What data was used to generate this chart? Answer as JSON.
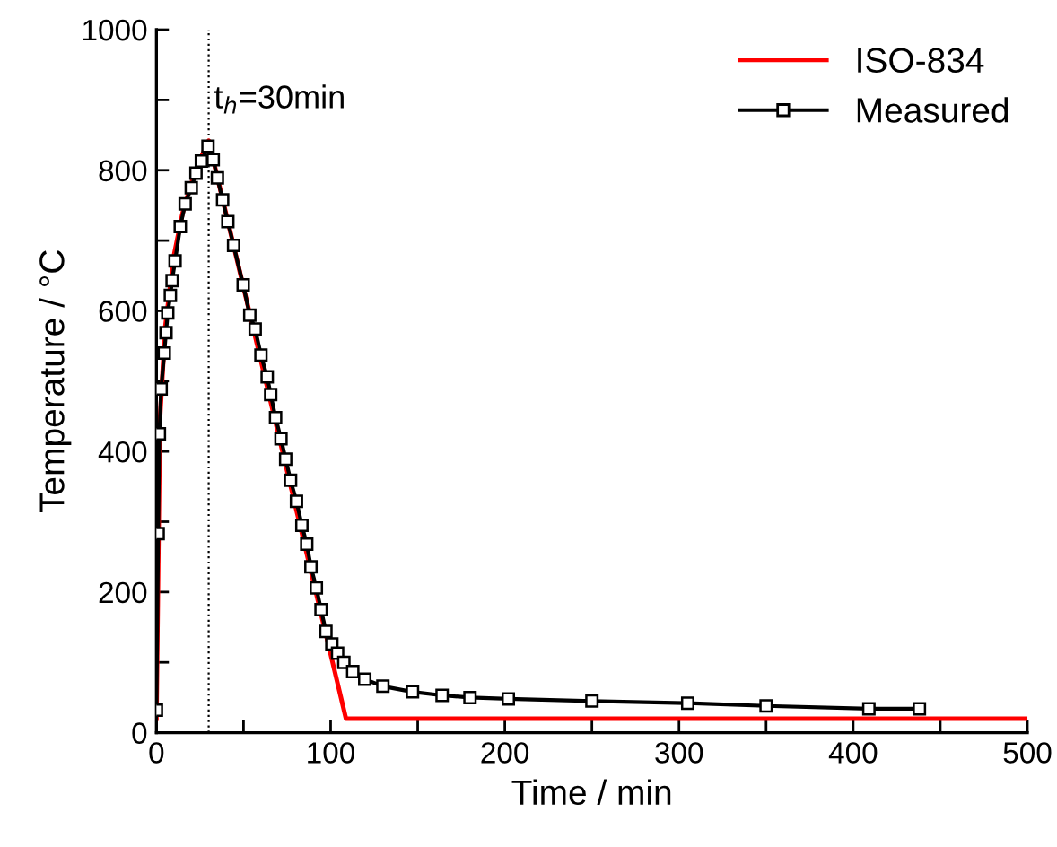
{
  "chart_data": {
    "type": "line",
    "xlabel": "Time / min",
    "ylabel": "Temperature / °C",
    "xlim": [
      0,
      500
    ],
    "ylim": [
      0,
      1000
    ],
    "xticks": [
      0,
      {
        "value": 50,
        "label": null
      },
      100,
      {
        "value": 150,
        "label": null
      },
      200,
      {
        "value": 250,
        "label": null
      },
      300,
      {
        "value": 350,
        "label": null
      },
      400,
      {
        "value": 450,
        "label": null
      },
      500
    ],
    "yticks": [
      0,
      {
        "value": 100,
        "label": null
      },
      200,
      {
        "value": 300,
        "label": null
      },
      400,
      {
        "value": 500,
        "label": null
      },
      600,
      {
        "value": 700,
        "label": null
      },
      800,
      {
        "value": 900,
        "label": null
      },
      1000
    ],
    "grid": false,
    "legend": "top right",
    "ref_lines": [
      {
        "axis": "x",
        "value": 30,
        "label": "t$_{h}$=30min",
        "color": "#000000",
        "line_style": "dotted"
      }
    ],
    "series": [
      {
        "name": "ISO-834",
        "color": "#ff0000",
        "marker": "none",
        "x": [
          0,
          2,
          5,
          10,
          15,
          20,
          25,
          30,
          108.8,
          500
        ],
        "values": [
          20,
          445,
          576,
          678,
          739,
          781,
          815,
          842,
          20,
          20
        ]
      },
      {
        "name": "Measured",
        "color": "#000000",
        "marker": "square",
        "x": [
          0,
          1,
          1.7,
          2.7,
          4.5,
          5.5,
          6.5,
          8,
          9,
          10.7,
          13.7,
          16.5,
          20,
          22.7,
          25.8,
          29.6,
          32.6,
          35,
          38,
          41,
          44.3,
          49.8,
          53.6,
          56.7,
          60,
          63.6,
          65.6,
          68.4,
          71.5,
          74.2,
          77,
          80.4,
          83.5,
          86.3,
          88.7,
          91.8,
          94.5,
          97.3,
          100.7,
          104,
          107.6,
          112.7,
          119.6,
          130,
          147,
          164,
          180,
          202,
          250,
          305,
          350,
          409,
          438
        ],
        "values": [
          32,
          283,
          425,
          489,
          540,
          569,
          597,
          622,
          643,
          671,
          720,
          752,
          775,
          796,
          813,
          834,
          815,
          789,
          758,
          727,
          693,
          637,
          594,
          574,
          537,
          506,
          481,
          448,
          418,
          389,
          359,
          329,
          295,
          268,
          236,
          206,
          175,
          144,
          126,
          113,
          100,
          87,
          76,
          66,
          58,
          53,
          50,
          48,
          45,
          42,
          38,
          34,
          34
        ]
      }
    ]
  }
}
